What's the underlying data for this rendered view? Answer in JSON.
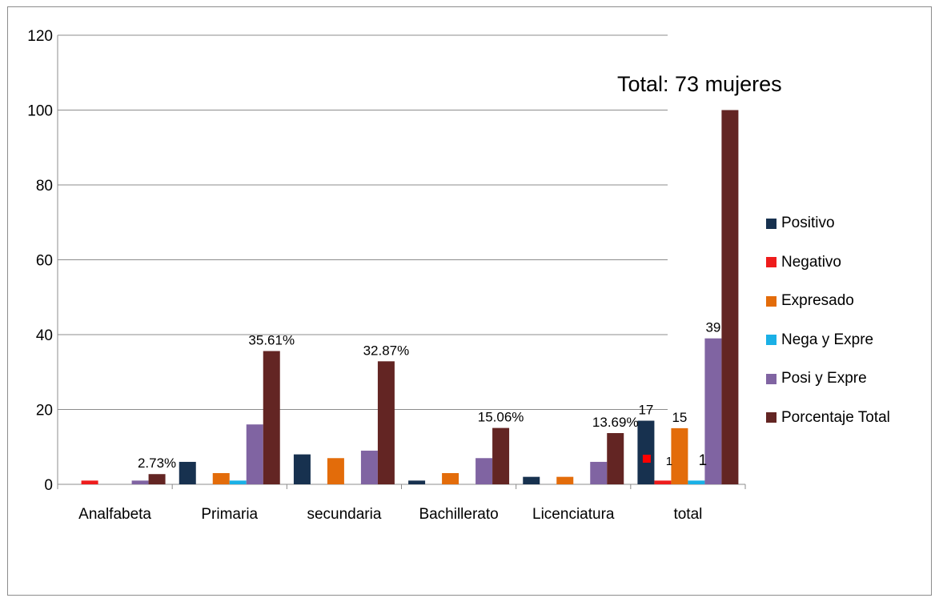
{
  "chart_data": {
    "type": "bar",
    "categories": [
      "Analfabeta",
      "Primaria",
      "secundaria",
      "Bachillerato",
      "Licenciatura",
      "total"
    ],
    "series": [
      {
        "name": "Positivo",
        "color": "#17314f",
        "values": [
          0,
          6,
          8,
          1,
          2,
          17
        ]
      },
      {
        "name": "Negativo",
        "color": "#ee1c1c",
        "values": [
          1,
          0,
          0,
          0,
          0,
          1
        ]
      },
      {
        "name": "Expresado",
        "color": "#e36c0a",
        "values": [
          0,
          3,
          7,
          3,
          2,
          15
        ]
      },
      {
        "name": "Nega y Expre",
        "color": "#1ab0e6",
        "values": [
          0,
          1,
          0,
          0,
          0,
          1
        ]
      },
      {
        "name": "Posi y Expre",
        "color": "#8064a2",
        "values": [
          1,
          16,
          9,
          7,
          6,
          39
        ]
      },
      {
        "name": "Porcentaje Total",
        "color": "#632523",
        "values": [
          2.73,
          35.61,
          32.87,
          15.06,
          13.69,
          100
        ]
      }
    ],
    "ylim": [
      0,
      120
    ],
    "yticks": [
      "0",
      "20",
      "40",
      "60",
      "80",
      "100",
      "120"
    ],
    "grid": true,
    "legend_position": "right",
    "data_labels": [
      {
        "category": 0,
        "series": 5,
        "text": "2.73%"
      },
      {
        "category": 1,
        "series": 5,
        "text": "35.61%"
      },
      {
        "category": 2,
        "series": 5,
        "text": "32.87%"
      },
      {
        "category": 3,
        "series": 5,
        "text": "15.06%"
      },
      {
        "category": 4,
        "series": 5,
        "text": "13.69%"
      },
      {
        "category": 5,
        "series": 0,
        "text": "17"
      },
      {
        "category": 5,
        "series": 1,
        "text": "1"
      },
      {
        "category": 5,
        "series": 2,
        "text": "15"
      },
      {
        "category": 5,
        "series": 3,
        "text": "1"
      },
      {
        "category": 5,
        "series": 4,
        "text": "39"
      }
    ],
    "annotation": "Total: 73 mujeres",
    "marker_color": "#ff0000"
  }
}
